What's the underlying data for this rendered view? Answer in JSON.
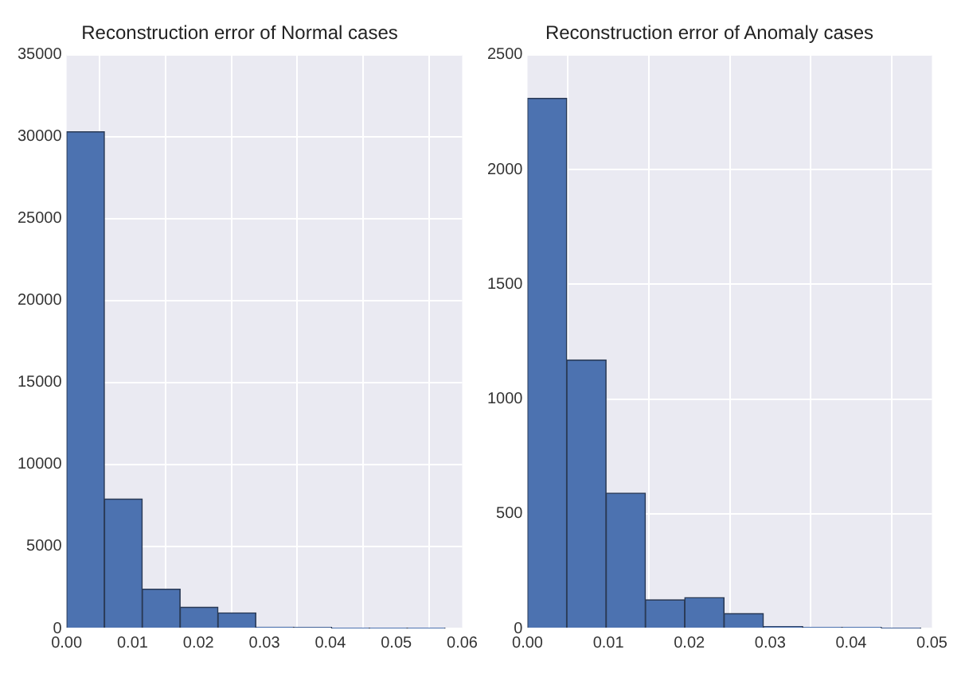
{
  "chart_data": [
    {
      "type": "histogram",
      "title": "Reconstruction error of Normal cases",
      "color": "#4c72b0",
      "grid": true,
      "bins": [
        0,
        0.00574,
        0.01148,
        0.01722,
        0.02296,
        0.0287,
        0.03444,
        0.04018,
        0.04592,
        0.05166,
        0.0574
      ],
      "values": [
        30300,
        7900,
        2400,
        1300,
        950,
        80,
        60,
        20,
        10,
        5
      ],
      "xlim": [
        0,
        0.06
      ],
      "xticks": [
        {
          "value": 0,
          "label": "0.00"
        },
        {
          "value": 0.01,
          "label": "0.01"
        },
        {
          "value": 0.02,
          "label": "0.02"
        },
        {
          "value": 0.03,
          "label": "0.03"
        },
        {
          "value": 0.04,
          "label": "0.04"
        },
        {
          "value": 0.05,
          "label": "0.05"
        },
        {
          "value": 0.06,
          "label": "0.06"
        }
      ],
      "ylim": [
        0,
        35000
      ],
      "yticks": [
        0,
        5000,
        10000,
        15000,
        20000,
        25000,
        30000,
        35000
      ]
    },
    {
      "type": "histogram",
      "title": "Reconstruction error of Anomaly cases",
      "color": "#4c72b0",
      "grid": true,
      "bins": [
        0,
        0.00486,
        0.00972,
        0.01458,
        0.01944,
        0.0243,
        0.02916,
        0.03402,
        0.03888,
        0.04374,
        0.0486
      ],
      "values": [
        2310,
        1170,
        590,
        125,
        135,
        65,
        8,
        5,
        5,
        2
      ],
      "xlim": [
        0,
        0.05
      ],
      "xticks": [
        {
          "value": 0,
          "label": "0.00"
        },
        {
          "value": 0.01,
          "label": "0.01"
        },
        {
          "value": 0.02,
          "label": "0.02"
        },
        {
          "value": 0.03,
          "label": "0.03"
        },
        {
          "value": 0.04,
          "label": "0.04"
        },
        {
          "value": 0.05,
          "label": "0.05"
        }
      ],
      "ylim": [
        0,
        2500
      ],
      "yticks": [
        0,
        500,
        1000,
        1500,
        2000,
        2500
      ]
    }
  ]
}
